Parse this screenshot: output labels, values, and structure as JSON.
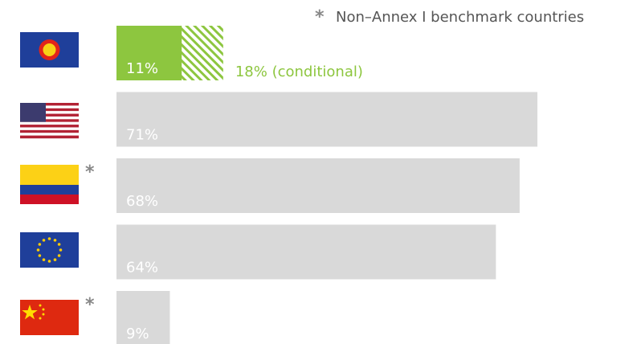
{
  "chart_data": {
    "type": "bar",
    "orientation": "horizontal",
    "categories": [
      null,
      null,
      null,
      null,
      null
    ],
    "series": [
      {
        "color": "#8dc63f",
        "values": [
          11,
          null,
          null,
          null,
          null
        ],
        "value_labels": [
          "11%",
          null,
          null,
          null,
          null
        ]
      },
      {
        "color": "#d9d9d9",
        "values": [
          null,
          71,
          68,
          64,
          9
        ],
        "value_labels": [
          null,
          "71%",
          "68%",
          "64%",
          "9%"
        ]
      }
    ],
    "conditional": {
      "color": "#8dc63f",
      "pattern": "hatch",
      "values": [
        18,
        null,
        null,
        null,
        null
      ],
      "value_labels": [
        "18% (conditional)",
        null,
        null,
        null,
        null
      ]
    },
    "markers": [
      null,
      null,
      "*",
      null,
      "*"
    ],
    "note": {
      "marker": "*",
      "text": "Non–Annex I benchmark countries"
    }
  }
}
